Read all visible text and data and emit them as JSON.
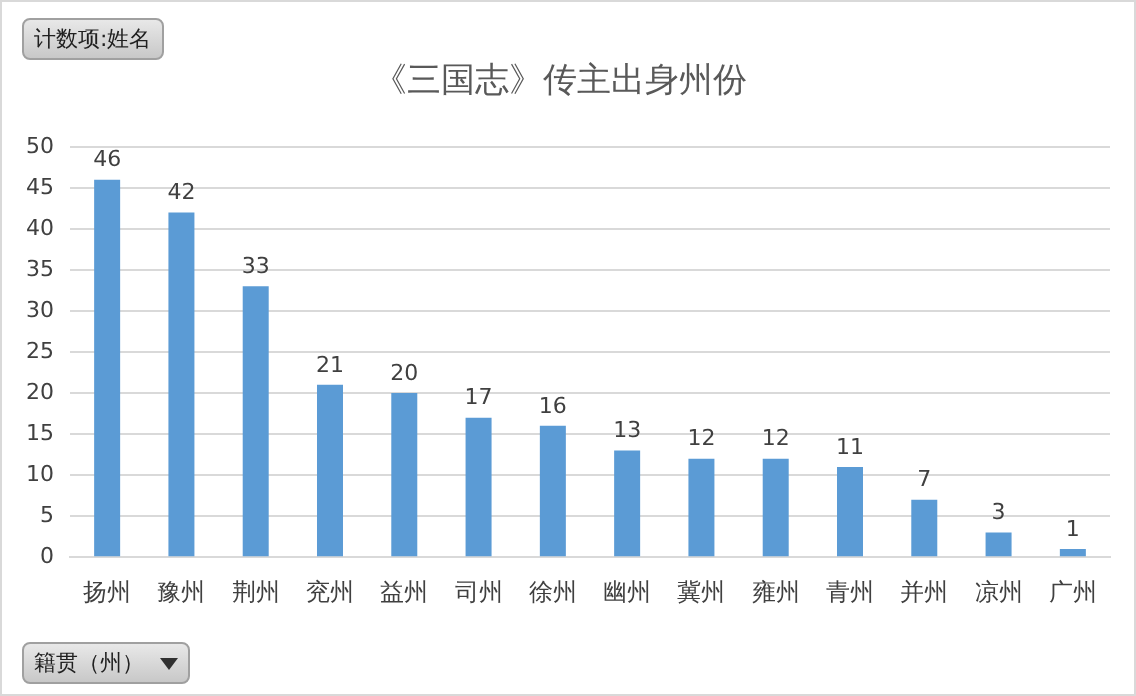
{
  "chart_data": {
    "type": "bar",
    "title": "《三国志》传主出身州份",
    "categories": [
      "扬州",
      "豫州",
      "荆州",
      "兖州",
      "益州",
      "司州",
      "徐州",
      "幽州",
      "冀州",
      "雍州",
      "青州",
      "并州",
      "凉州",
      "广州"
    ],
    "values": [
      46,
      42,
      33,
      21,
      20,
      17,
      16,
      13,
      12,
      12,
      11,
      7,
      3,
      1
    ],
    "color": "#5b9bd5",
    "ylim": [
      0,
      50
    ],
    "yticks": [
      0,
      5,
      10,
      15,
      20,
      25,
      30,
      35,
      40,
      45,
      50
    ],
    "grid": "y",
    "data_labels": true,
    "legend": false,
    "annotations": [
      "计数项:姓名",
      "籍贯（州）"
    ]
  }
}
